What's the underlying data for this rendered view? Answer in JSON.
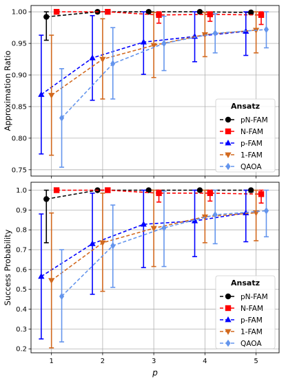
{
  "figure": {
    "xlabel": "p",
    "legend_title": "Ansatz"
  },
  "chart_data": [
    {
      "type": "line",
      "ylabel": "Approximation Ratio",
      "xlim": [
        0.6,
        5.45
      ],
      "ylim": [
        0.74,
        1.01
      ],
      "xticks": [
        1,
        2,
        3,
        4,
        5
      ],
      "yticks": [
        0.75,
        0.8,
        0.85,
        0.9,
        0.95,
        1.0
      ],
      "ytick_labels": [
        "0.75",
        "0.80",
        "0.85",
        "0.90",
        "0.95",
        "1.00"
      ],
      "grid": true,
      "legend_position": "lower-right",
      "series": [
        {
          "name": "pN-FAM",
          "color": "#000000",
          "marker": "circle",
          "offset": -0.1,
          "x": [
            1,
            2,
            3,
            4,
            5
          ],
          "y": [
            0.992,
            1.0,
            1.0,
            1.0,
            0.999
          ],
          "err_low": [
            0.955,
            0.999,
            0.999,
            0.999,
            0.996
          ],
          "err_high": [
            1.0,
            1.0,
            1.0,
            1.0,
            1.0
          ]
        },
        {
          "name": "N-FAM",
          "color": "#ff0000",
          "marker": "square",
          "offset": 0.1,
          "x": [
            1,
            2,
            3,
            4,
            5
          ],
          "y": [
            1.0,
            1.0,
            0.995,
            0.996,
            0.995
          ],
          "err_low": [
            0.999,
            0.998,
            0.982,
            0.985,
            0.98
          ],
          "err_high": [
            1.0,
            1.0,
            1.0,
            1.0,
            1.0
          ]
        },
        {
          "name": "p-FAM",
          "color": "#0000ff",
          "marker": "triangle-up",
          "offset": -0.2,
          "x": [
            1,
            2,
            3,
            4,
            5
          ],
          "y": [
            0.869,
            0.927,
            0.952,
            0.961,
            0.969
          ],
          "err_low": [
            0.775,
            0.86,
            0.901,
            0.921,
            0.931
          ],
          "err_high": [
            0.963,
            0.994,
            1.0,
            1.0,
            1.0
          ]
        },
        {
          "name": "1-FAM",
          "color": "#d2691e",
          "marker": "triangle-down",
          "offset": 0.0,
          "x": [
            1,
            2,
            3,
            4,
            5
          ],
          "y": [
            0.868,
            0.925,
            0.947,
            0.964,
            0.971
          ],
          "err_low": [
            0.773,
            0.862,
            0.896,
            0.929,
            0.935
          ],
          "err_high": [
            0.963,
            0.989,
            0.999,
            0.999,
            1.0
          ]
        },
        {
          "name": "QAOA",
          "color": "#6495ed",
          "marker": "diamond",
          "offset": 0.2,
          "x": [
            1,
            2,
            3,
            4,
            5
          ],
          "y": [
            0.832,
            0.918,
            0.95,
            0.966,
            0.972
          ],
          "err_low": [
            0.754,
            0.862,
            0.907,
            0.935,
            0.943
          ],
          "err_high": [
            0.91,
            0.975,
            0.993,
            0.997,
            1.0
          ]
        }
      ]
    },
    {
      "type": "line",
      "ylabel": "Success Probability",
      "xlim": [
        0.6,
        5.45
      ],
      "ylim": [
        0.18,
        1.04
      ],
      "xticks": [
        1,
        2,
        3,
        4,
        5
      ],
      "xtick_labels": [
        "1",
        "2",
        "3",
        "4",
        "5"
      ],
      "yticks": [
        0.2,
        0.3,
        0.4,
        0.5,
        0.6,
        0.7,
        0.8,
        0.9,
        1.0
      ],
      "ytick_labels": [
        "0.2",
        "0.3",
        "0.4",
        "0.5",
        "0.6",
        "0.7",
        "0.8",
        "0.9",
        "1.0"
      ],
      "grid": true,
      "legend_position": "lower-right",
      "series": [
        {
          "name": "pN-FAM",
          "color": "#000000",
          "marker": "circle",
          "offset": -0.1,
          "x": [
            1,
            2,
            3,
            4,
            5
          ],
          "y": [
            0.955,
            1.0,
            1.0,
            1.0,
            1.0
          ],
          "err_low": [
            0.735,
            0.995,
            0.995,
            0.995,
            0.99
          ],
          "err_high": [
            1.0,
            1.0,
            1.0,
            1.0,
            1.0
          ]
        },
        {
          "name": "N-FAM",
          "color": "#ff0000",
          "marker": "square",
          "offset": 0.1,
          "x": [
            1,
            2,
            3,
            4,
            5
          ],
          "y": [
            1.0,
            1.0,
            0.985,
            0.985,
            0.98
          ],
          "err_low": [
            0.995,
            0.99,
            0.94,
            0.945,
            0.935
          ],
          "err_high": [
            1.0,
            1.0,
            1.0,
            1.0,
            1.0
          ]
        },
        {
          "name": "p-FAM",
          "color": "#0000ff",
          "marker": "triangle-up",
          "offset": -0.2,
          "x": [
            1,
            2,
            3,
            4,
            5
          ],
          "y": [
            0.565,
            0.73,
            0.828,
            0.845,
            0.885
          ],
          "err_low": [
            0.25,
            0.475,
            0.61,
            0.665,
            0.74
          ],
          "err_high": [
            0.88,
            0.985,
            1.0,
            1.0,
            1.0
          ]
        },
        {
          "name": "1-FAM",
          "color": "#d2691e",
          "marker": "triangle-down",
          "offset": 0.0,
          "x": [
            1,
            2,
            3,
            4,
            5
          ],
          "y": [
            0.545,
            0.735,
            0.808,
            0.866,
            0.886
          ],
          "err_low": [
            0.205,
            0.49,
            0.615,
            0.735,
            0.745
          ],
          "err_high": [
            0.885,
            0.985,
            1.0,
            1.0,
            1.0
          ]
        },
        {
          "name": "QAOA",
          "color": "#6495ed",
          "marker": "diamond",
          "offset": 0.2,
          "x": [
            1,
            2,
            3,
            4,
            5
          ],
          "y": [
            0.465,
            0.72,
            0.81,
            0.876,
            0.896
          ],
          "err_low": [
            0.235,
            0.51,
            0.615,
            0.73,
            0.765
          ],
          "err_high": [
            0.7,
            0.925,
            0.995,
            1.0,
            1.0
          ]
        }
      ]
    }
  ]
}
